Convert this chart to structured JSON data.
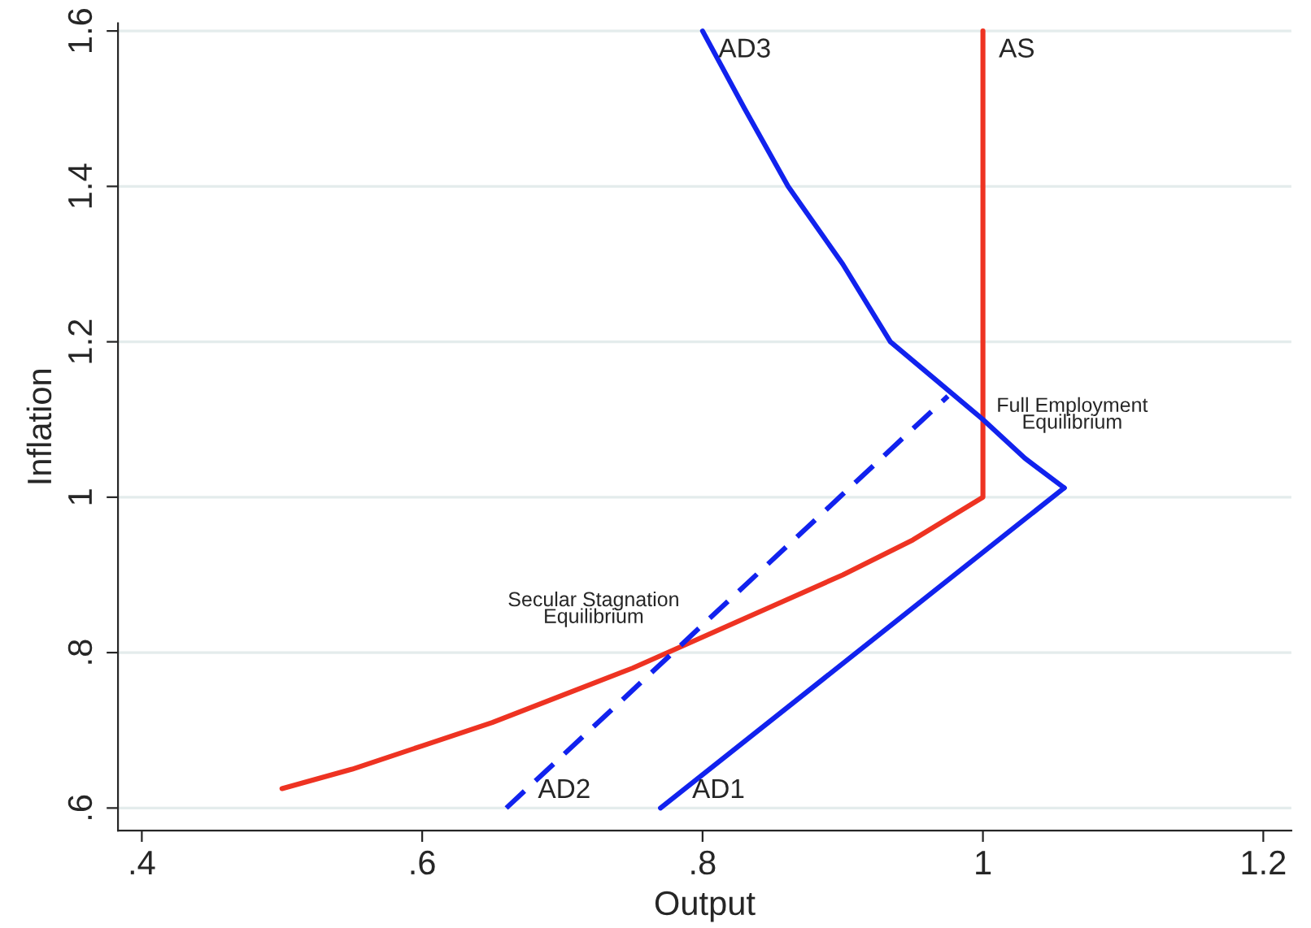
{
  "chart_data": {
    "type": "line",
    "xlabel": "Output",
    "ylabel": "Inflation",
    "xlim": [
      0.383,
      1.22
    ],
    "ylim": [
      0.571,
      1.61
    ],
    "xticks": [
      {
        "value": 0.4,
        "label": ".4"
      },
      {
        "value": 0.6,
        "label": ".6"
      },
      {
        "value": 0.8,
        "label": ".8"
      },
      {
        "value": 1,
        "label": "1"
      },
      {
        "value": 1.2,
        "label": "1.2"
      }
    ],
    "yticks": [
      {
        "value": 0.6,
        "label": ".6"
      },
      {
        "value": 0.8,
        "label": ".8"
      },
      {
        "value": 1,
        "label": "1"
      },
      {
        "value": 1.2,
        "label": "1.2"
      },
      {
        "value": 1.4,
        "label": "1.4"
      },
      {
        "value": 1.6,
        "label": "1.6"
      }
    ],
    "grid": "y",
    "legend": false,
    "marker": "none",
    "series": [
      {
        "name": "AS",
        "color": "#ee3322",
        "line_style": "solid",
        "x": [
          0.5,
          0.55,
          0.6,
          0.65,
          0.7,
          0.75,
          0.8,
          0.85,
          0.9,
          0.95,
          1.0,
          1.0
        ],
        "values": [
          0.625,
          0.65,
          0.68,
          0.71,
          0.745,
          0.78,
          0.82,
          0.86,
          0.9,
          0.945,
          1.0,
          1.6
        ]
      },
      {
        "name": "AD1",
        "color": "#1122ee",
        "line_style": "solid",
        "x": [
          0.77,
          1.058
        ],
        "values": [
          0.6,
          1.012
        ]
      },
      {
        "name": "AD3",
        "color": "#1122ee",
        "line_style": "solid",
        "x": [
          1.058,
          1.03,
          1.0,
          0.967,
          0.934,
          0.9,
          0.861,
          0.83,
          0.8
        ],
        "values": [
          1.012,
          1.05,
          1.1,
          1.15,
          1.2,
          1.3,
          1.4,
          1.5,
          1.6
        ]
      },
      {
        "name": "AD2",
        "color": "#1122ee",
        "line_style": "dashed",
        "x": [
          0.66,
          0.975
        ],
        "values": [
          0.6,
          1.13
        ]
      }
    ],
    "annotations": [
      {
        "text": "Full Employment\nEquilibrium",
        "x": 1.0,
        "y": 1.1
      },
      {
        "text": "Secular Stagnation\nEquilibrium",
        "x": 0.79,
        "y": 0.815
      }
    ]
  }
}
